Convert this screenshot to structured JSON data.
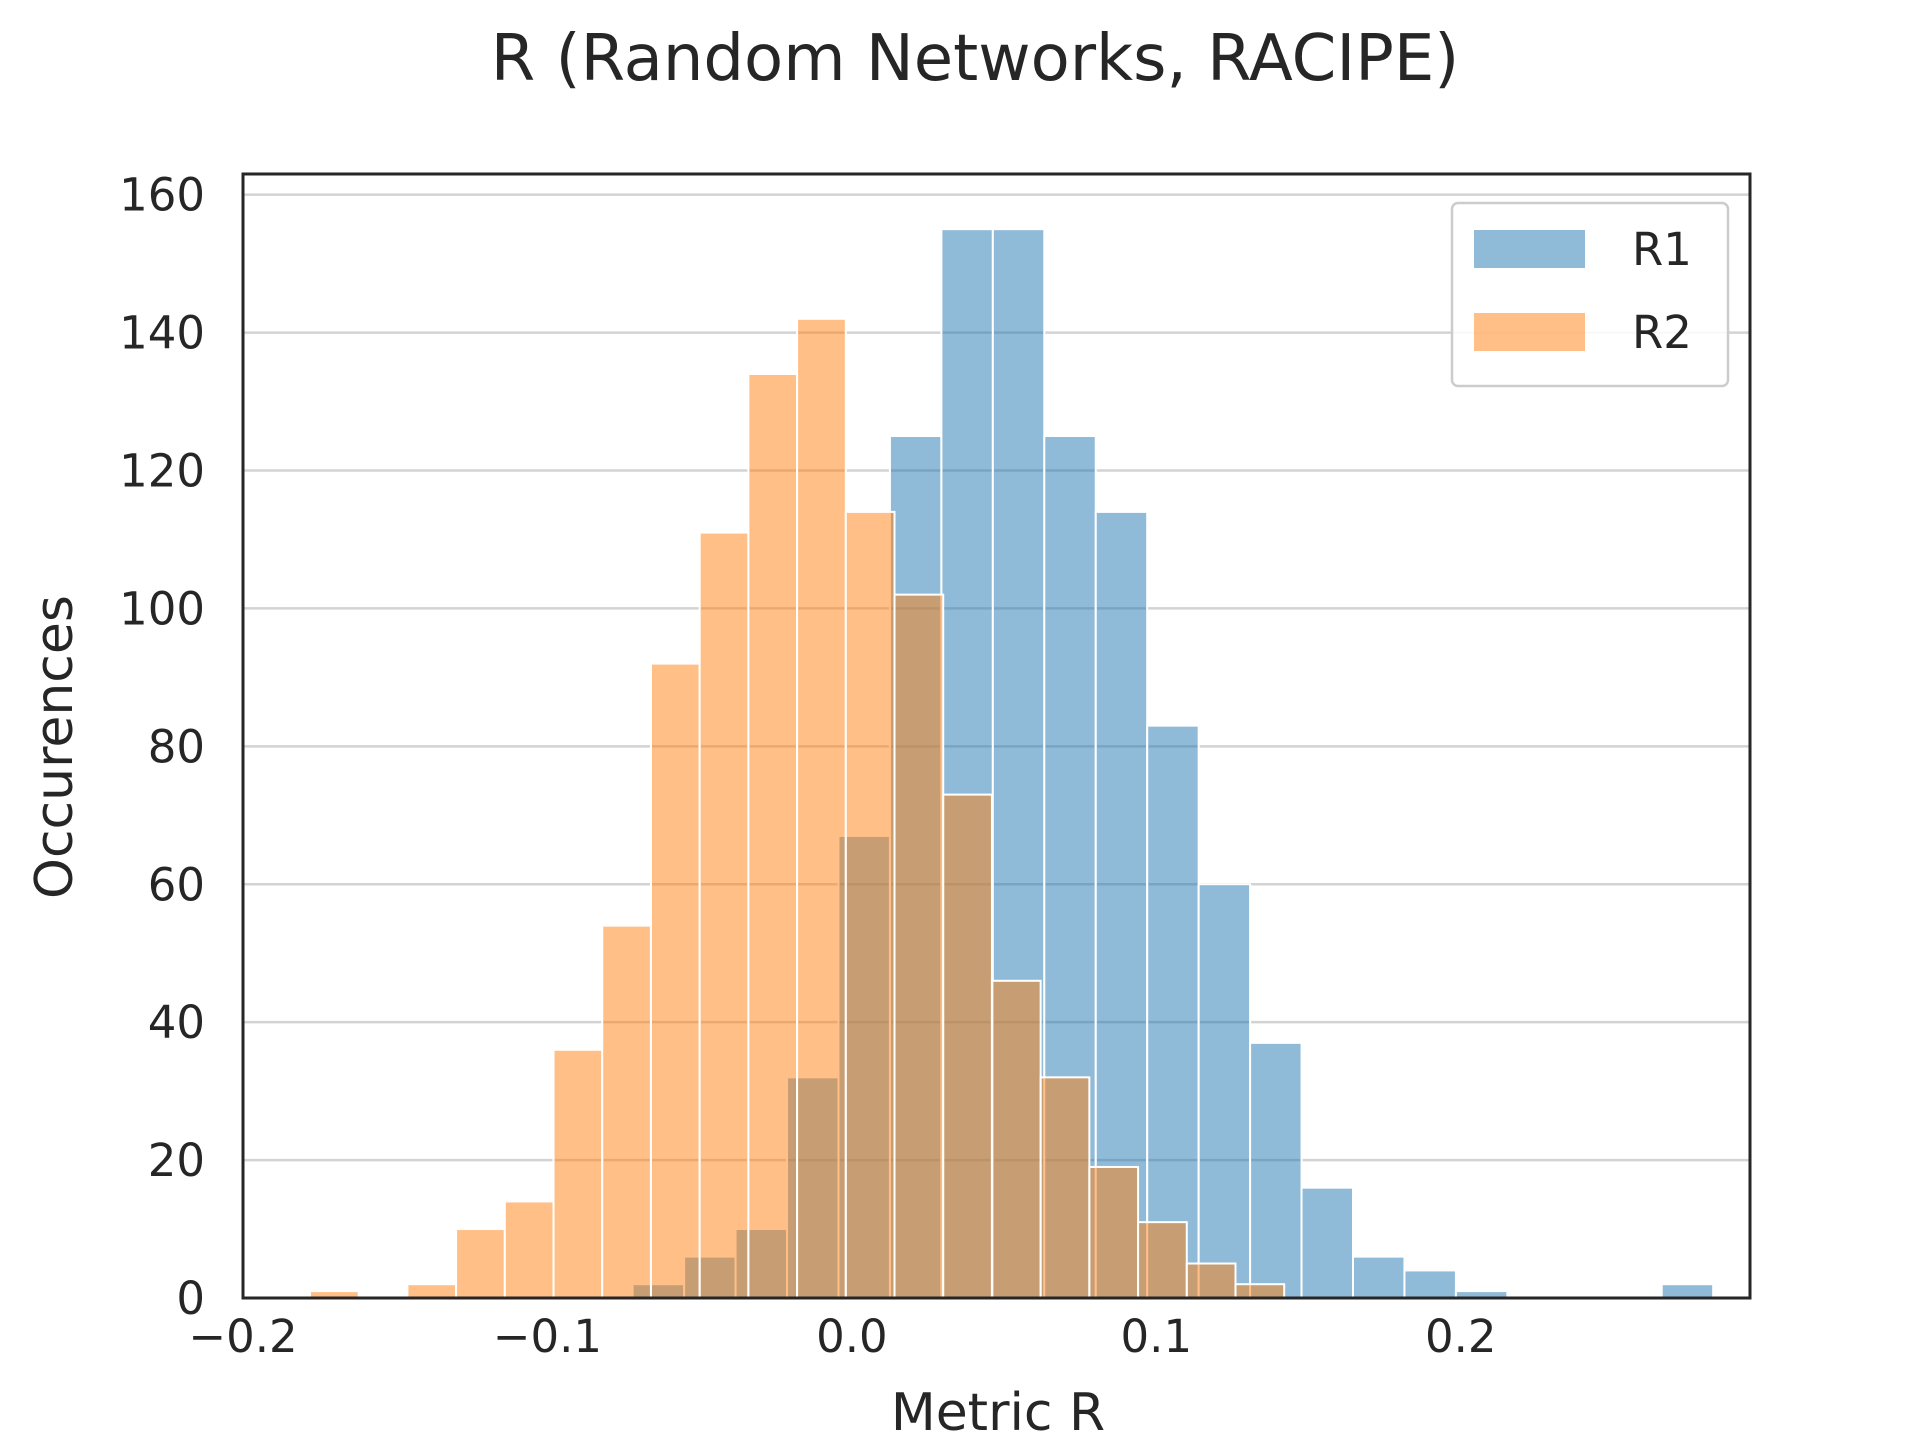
{
  "chart_data": {
    "type": "bar",
    "title": "R (Random Networks, RACIPE)",
    "xlabel": "Metric R",
    "ylabel": "Occurences",
    "xlim": [
      -0.2,
      0.295
    ],
    "ylim": [
      0,
      163
    ],
    "grid": "horizontal",
    "legend_position": "top-right",
    "xticks": [
      -0.2,
      -0.1,
      0.0,
      0.1,
      0.2
    ],
    "xtick_labels": [
      "−0.2",
      "−0.1",
      "0.0",
      "0.1",
      "0.2"
    ],
    "yticks": [
      0,
      20,
      40,
      60,
      80,
      100,
      120,
      140,
      160
    ],
    "ytick_labels": [
      "0",
      "20",
      "40",
      "60",
      "80",
      "100",
      "120",
      "140",
      "160"
    ],
    "series": [
      {
        "name": "R1",
        "color": "#1f77b4",
        "opacity": 0.5,
        "bin_edges": [
          -0.072,
          -0.0551,
          -0.0382,
          -0.0213,
          -0.0044,
          0.0125,
          0.0294,
          0.0463,
          0.0632,
          0.0801,
          0.097,
          0.1139,
          0.1308,
          0.1477,
          0.1646,
          0.1815,
          0.1984,
          0.2153,
          0.2322,
          0.2491,
          0.266,
          0.2829
        ],
        "counts": [
          2,
          6,
          10,
          32,
          67,
          125,
          155,
          155,
          125,
          114,
          83,
          60,
          37,
          16,
          6,
          4,
          1,
          0,
          0,
          0,
          2
        ]
      },
      {
        "name": "R2",
        "color": "#ff7f0e",
        "opacity": 0.5,
        "bin_edges": [
          -0.178,
          -0.162,
          -0.146,
          -0.13,
          -0.114,
          -0.098,
          -0.082,
          -0.066,
          -0.05,
          -0.034,
          -0.018,
          -0.002,
          0.014,
          0.03,
          0.046,
          0.062,
          0.078,
          0.094,
          0.11,
          0.126,
          0.142
        ],
        "counts": [
          1,
          0,
          2,
          10,
          14,
          36,
          54,
          92,
          111,
          134,
          142,
          114,
          102,
          73,
          46,
          32,
          19,
          11,
          5,
          2
        ]
      }
    ]
  }
}
